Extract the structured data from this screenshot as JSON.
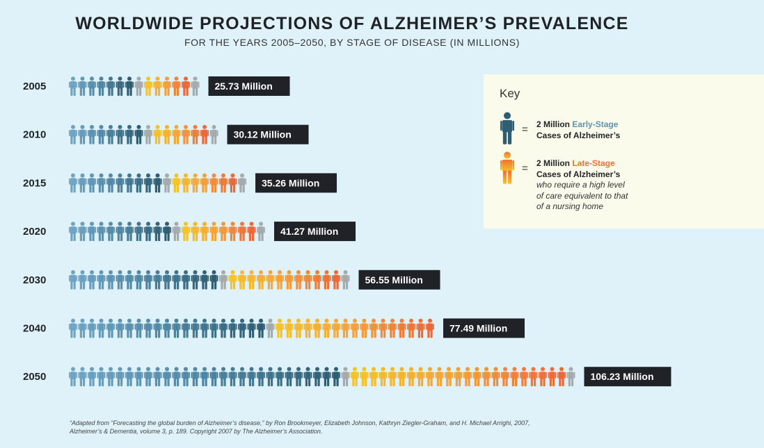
{
  "title": "WORLDWIDE PROJECTIONS OF ALZHEIMER’S PREVALENCE",
  "subtitle": "FOR THE YEARS 2005–2050, BY STAGE OF DISEASE (IN MILLIONS)",
  "colors": {
    "early_light": "#6fa4c4",
    "early_mid": "#4f86a3",
    "early_dark": "#2f5d72",
    "remainder_gray": "#a5aaad",
    "late_yellow": "#f6c22a",
    "late_orange": "#f4a03a",
    "late_red": "#ec6838",
    "label_bg": "#1f2226",
    "key_bg": "#fbfbeb",
    "background": "#dff1f9"
  },
  "chart_data": {
    "type": "bar",
    "unit": "Million",
    "icon_value": 2,
    "categories": [
      "2005",
      "2010",
      "2015",
      "2020",
      "2030",
      "2040",
      "2050"
    ],
    "series": [
      {
        "name": "Early-Stage",
        "values": [
          15.1,
          17.7,
          20.6,
          23.9,
          32.4,
          43.5,
          58.6
        ]
      },
      {
        "name": "Late-Stage",
        "values": [
          10.6,
          12.4,
          14.7,
          17.4,
          24.1,
          34.0,
          47.6
        ]
      }
    ],
    "totals": [
      25.73,
      30.12,
      35.26,
      41.27,
      56.55,
      77.49,
      106.23
    ],
    "value_labels": [
      "25.73 Million",
      "30.12 Million",
      "35.26 Million",
      "41.27 Million",
      "56.55 Million",
      "77.49 Million",
      "106.23 Million"
    ]
  },
  "key": {
    "title": "Key",
    "equals": "=",
    "early": {
      "prefix": "2 Million",
      "stage": "Early-Stage",
      "line2": "Cases of Alzheimer’s"
    },
    "late": {
      "prefix": "2 Million",
      "stage": "Late-Stage",
      "line2": "Cases of Alzheimer’s",
      "note1": "who require a high level",
      "note2": "of care equivalent to that",
      "note3": "of a nursing home"
    }
  },
  "footnote": {
    "line1": "“Adapted from “Forecasting the global burden of Alzheimer’s disease,” by Ron Brookmeyer, Elizabeth Johnson, Kathryn Ziegler-Graham, and H. Michael Arrighi, 2007,",
    "line2": "Alzheimer’s & Dementia, volume 3, p. 189. Copyright 2007 by The Alzheimer’s Association."
  }
}
